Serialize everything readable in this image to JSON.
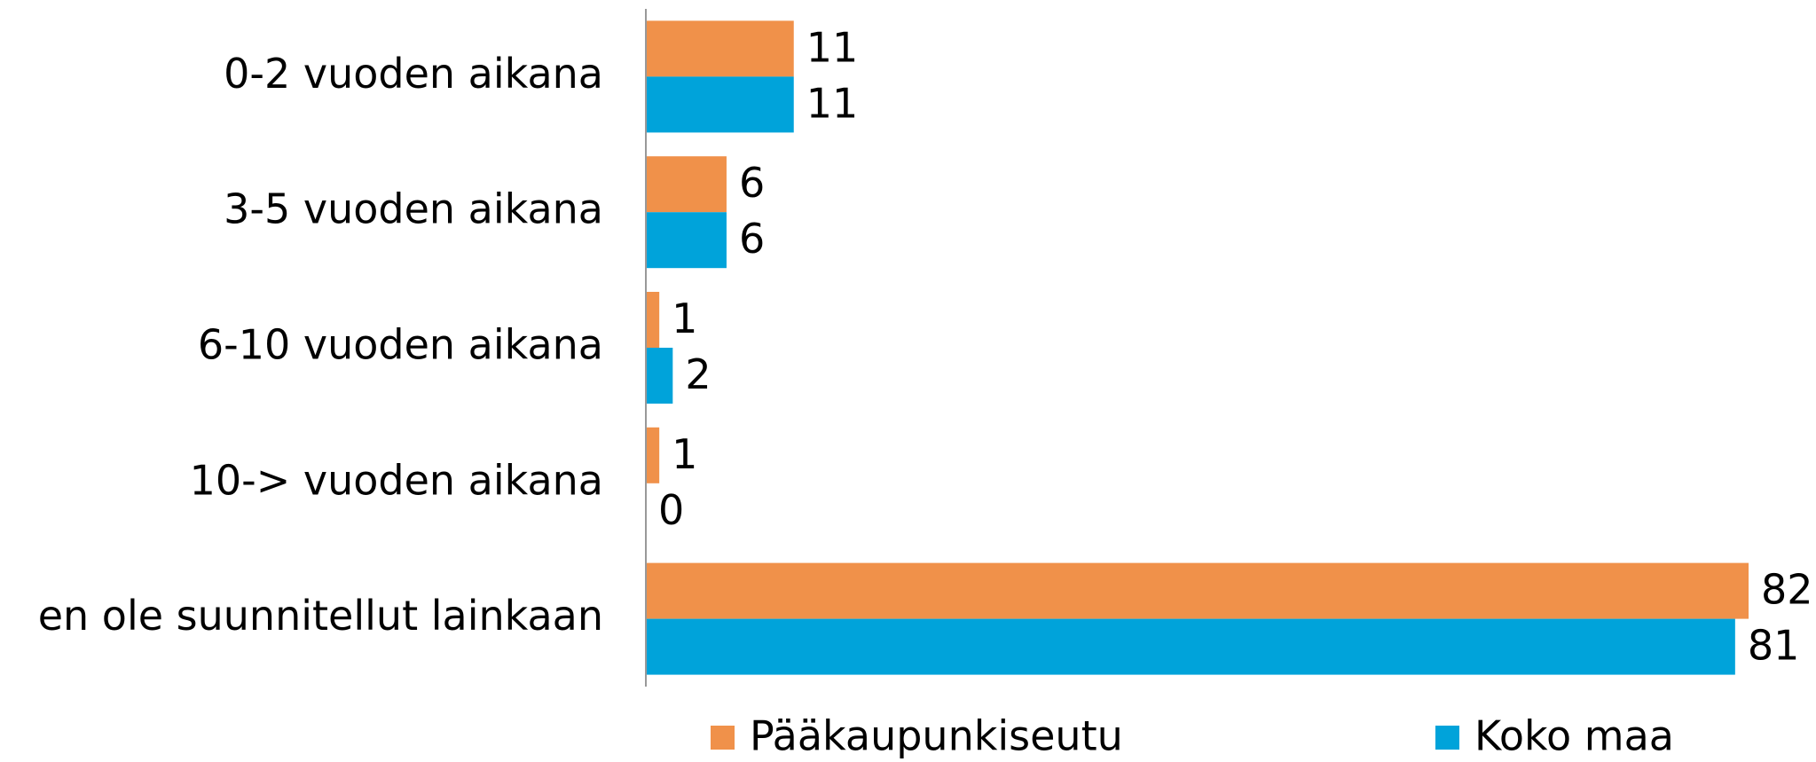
{
  "chart_data": {
    "type": "bar",
    "orientation": "horizontal",
    "categories": [
      "0-2 vuoden aikana",
      "3-5 vuoden aikana",
      "6-10 vuoden aikana",
      "10-> vuoden aikana",
      "en ole suunnitellut lainkaan"
    ],
    "series": [
      {
        "name": "Pääkaupunkiseutu",
        "color": "#f0914a",
        "values": [
          11,
          6,
          1,
          1,
          82
        ]
      },
      {
        "name": "Koko maa",
        "color": "#00a3da",
        "values": [
          11,
          6,
          2,
          0,
          81
        ]
      }
    ],
    "xlim": [
      0,
      82
    ],
    "legend": "bottom"
  }
}
